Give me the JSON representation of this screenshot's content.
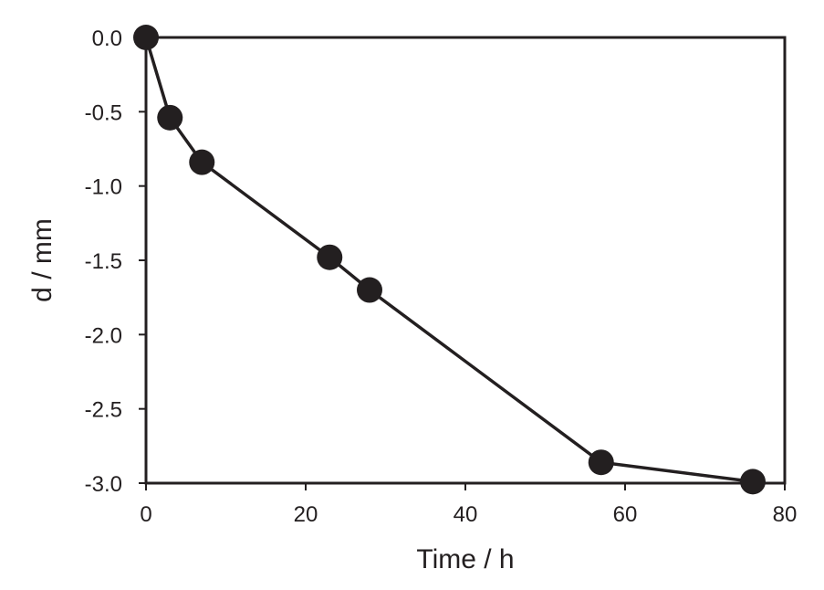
{
  "chart_data": {
    "type": "line",
    "title": "",
    "xlabel": "Time / h",
    "ylabel": "d / mm",
    "xlim": [
      0,
      80
    ],
    "ylim": [
      -3.0,
      0.0
    ],
    "xticks": [
      0,
      20,
      40,
      60,
      80
    ],
    "yticks": [
      0.0,
      -0.5,
      -1.0,
      -1.5,
      -2.0,
      -2.5,
      -3.0
    ],
    "xtick_labels": [
      "0",
      "20",
      "40",
      "60",
      "80"
    ],
    "ytick_labels": [
      "0.0",
      "-0.5",
      "-1.0",
      "-1.5",
      "-2.0",
      "-2.5",
      "-3.0"
    ],
    "grid": false,
    "series": [
      {
        "name": "d",
        "color": "#231f20",
        "marker": "circle",
        "x": [
          0,
          3,
          7,
          23,
          28,
          57,
          76
        ],
        "y": [
          0.0,
          -0.54,
          -0.84,
          -1.48,
          -1.7,
          -2.86,
          -2.99
        ]
      }
    ]
  }
}
